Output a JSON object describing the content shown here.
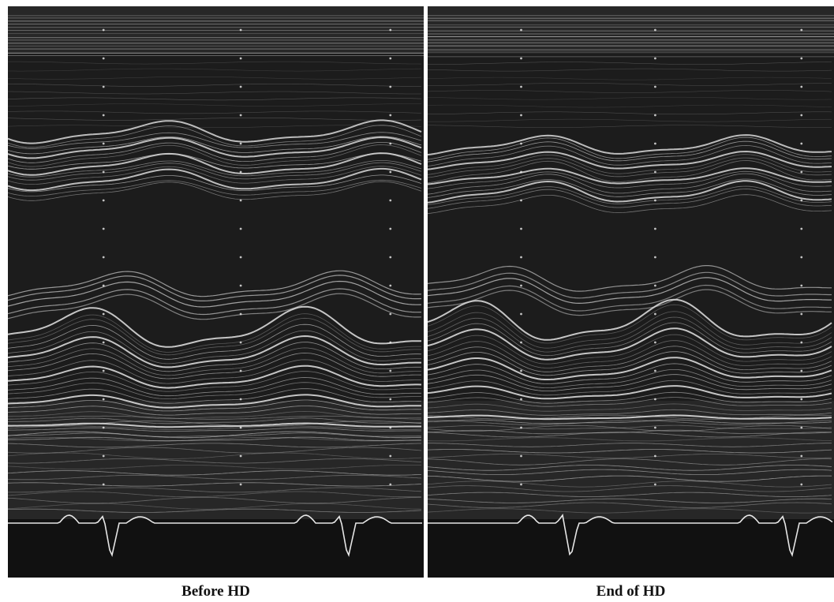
{
  "panels": [
    {
      "id": "before",
      "caption": "Before HD",
      "image_semantic": "m-mode-echocardiogram",
      "trace_semantic": "ecg-trace"
    },
    {
      "id": "after",
      "caption": "End of HD",
      "image_semantic": "m-mode-echocardiogram",
      "trace_semantic": "ecg-trace"
    }
  ],
  "colors": {
    "background": "#ffffff",
    "echo_dark": "#1a1a1a",
    "echo_line": "#d8d8d8",
    "ecg_line": "#f2f2f2",
    "caption_text": "#111111"
  }
}
